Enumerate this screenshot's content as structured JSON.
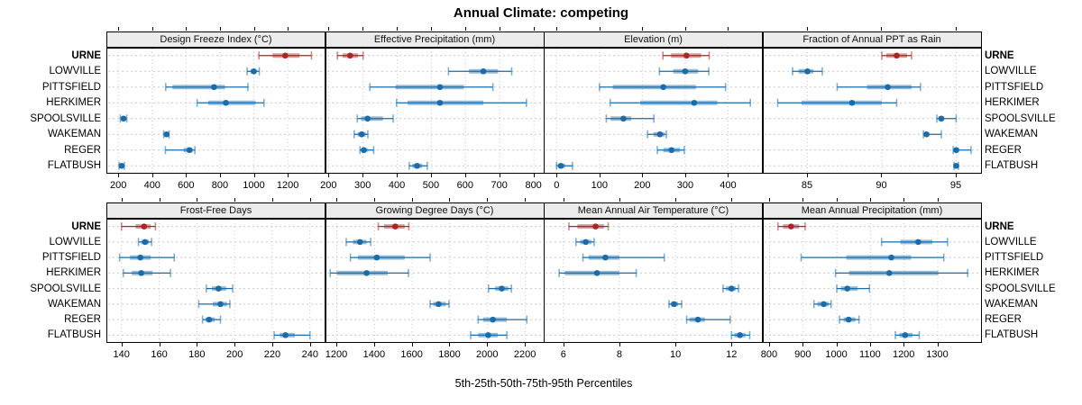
{
  "title": "Annual Climate: competing",
  "xlabel": "5th-25th-50th-75th-95th Percentiles",
  "colors": {
    "highlight": "#b22222",
    "normal": "#1a6ba8",
    "strip_bg": "#ebebeb",
    "grid": "#c9c9c9",
    "border": "#000000",
    "panel_bg": "#ffffff"
  },
  "chart_data": {
    "type": "dotplot-percentiles",
    "title": "Annual Climate: competing",
    "xlabel": "5th-25th-50th-75th-95th Percentiles",
    "percentile_labels": [
      "5th",
      "25th",
      "50th",
      "75th",
      "95th"
    ],
    "categories": [
      "URNE",
      "LOWVILLE",
      "PITTSFIELD",
      "HERKIMER",
      "SPOOLSVILLE",
      "WAKEMAN",
      "REGER",
      "FLATBUSH"
    ],
    "highlight_category": "URNE",
    "legend_position": "none",
    "grid": true,
    "panels": [
      {
        "title": "Design Freeze Index (°C)",
        "row": 0,
        "col": 0,
        "xlim": [
          130,
          1420
        ],
        "ticks": [
          200,
          400,
          600,
          800,
          1000,
          1200
        ],
        "series": [
          [
            1030,
            1110,
            1185,
            1270,
            1340
          ],
          [
            960,
            980,
            1000,
            1016,
            1032
          ],
          [
            480,
            520,
            765,
            830,
            965
          ],
          [
            665,
            730,
            835,
            1010,
            1060
          ],
          [
            212,
            222,
            231,
            240,
            250
          ],
          [
            468,
            477,
            485,
            493,
            500
          ],
          [
            478,
            585,
            620,
            640,
            652
          ],
          [
            205,
            212,
            220,
            228,
            236
          ]
        ]
      },
      {
        "title": "Effective Precipitation (mm)",
        "row": 0,
        "col": 1,
        "xlim": [
          190,
          830
        ],
        "ticks": [
          200,
          300,
          400,
          500,
          600,
          700,
          800
        ],
        "series": [
          [
            225,
            240,
            262,
            285,
            300
          ],
          [
            550,
            610,
            652,
            695,
            735
          ],
          [
            320,
            395,
            525,
            595,
            680
          ],
          [
            398,
            430,
            525,
            652,
            778
          ],
          [
            283,
            294,
            313,
            358,
            388
          ],
          [
            274,
            284,
            296,
            308,
            314
          ],
          [
            291,
            296,
            302,
            313,
            331
          ],
          [
            435,
            444,
            458,
            473,
            488
          ]
        ]
      },
      {
        "title": "Elevation (m)",
        "row": 0,
        "col": 2,
        "xlim": [
          -30,
          480
        ],
        "ticks": [
          0,
          100,
          200,
          300,
          400
        ],
        "series": [
          [
            248,
            267,
            303,
            337,
            356
          ],
          [
            240,
            272,
            300,
            330,
            355
          ],
          [
            100,
            131,
            249,
            325,
            394
          ],
          [
            125,
            195,
            321,
            375,
            452
          ],
          [
            116,
            126,
            156,
            174,
            227
          ],
          [
            212,
            226,
            241,
            252,
            256
          ],
          [
            235,
            249,
            268,
            288,
            298
          ],
          [
            0,
            3,
            10,
            20,
            37
          ]
        ]
      },
      {
        "title": "Fraction of Annual PPT as Rain",
        "row": 0,
        "col": 3,
        "xlim": [
          82,
          96.7
        ],
        "ticks": [
          85,
          90,
          95
        ],
        "series": [
          [
            90.0,
            90.3,
            91.0,
            91.7,
            92.0
          ],
          [
            84.0,
            84.4,
            85.0,
            85.4,
            86.0
          ],
          [
            87.0,
            89.0,
            90.4,
            92.0,
            92.6
          ],
          [
            83.0,
            84.6,
            88.0,
            90.0,
            91.0
          ],
          [
            93.7,
            93.8,
            94.0,
            94.2,
            95.0
          ],
          [
            92.8,
            92.9,
            93.0,
            93.2,
            94.0
          ],
          [
            94.8,
            94.9,
            95.0,
            95.2,
            96.0
          ],
          [
            94.85,
            94.9,
            95.0,
            95.1,
            95.15
          ]
        ]
      },
      {
        "title": "Frost-Free Days",
        "row": 1,
        "col": 0,
        "xlim": [
          132,
          248
        ],
        "ticks": [
          140,
          160,
          180,
          200,
          220,
          240
        ],
        "series": [
          [
            140,
            147.5,
            152,
            155.5,
            158
          ],
          [
            149,
            150.5,
            152.5,
            154.5,
            156
          ],
          [
            139,
            144.5,
            150,
            155.5,
            168
          ],
          [
            141,
            145.5,
            150.5,
            156.5,
            166
          ],
          [
            185,
            188,
            191.5,
            195.5,
            199
          ],
          [
            181,
            188.5,
            192.5,
            196,
            197.5
          ],
          [
            183,
            184.5,
            186.5,
            189.5,
            192.5
          ],
          [
            221,
            224,
            227,
            232,
            240
          ]
        ]
      },
      {
        "title": "Growing Degree Days (°C)",
        "row": 1,
        "col": 1,
        "xlim": [
          1140,
          2300
        ],
        "ticks": [
          1200,
          1400,
          1600,
          1800,
          2000,
          2200
        ],
        "series": [
          [
            1420,
            1450,
            1510,
            1560,
            1582
          ],
          [
            1250,
            1286,
            1323,
            1358,
            1380
          ],
          [
            1272,
            1312,
            1412,
            1560,
            1695
          ],
          [
            1165,
            1200,
            1358,
            1470,
            1580
          ],
          [
            2005,
            2040,
            2075,
            2110,
            2126
          ],
          [
            1695,
            1712,
            1740,
            1779,
            1795
          ],
          [
            1950,
            1976,
            2028,
            2102,
            2208
          ],
          [
            1910,
            1950,
            2003,
            2054,
            2102
          ]
        ]
      },
      {
        "title": "Mean Annual Air Temperature (°C)",
        "row": 1,
        "col": 2,
        "xlim": [
          5.3,
          13.1
        ],
        "ticks": [
          6,
          8,
          10,
          12
        ],
        "series": [
          [
            6.2,
            6.5,
            7.15,
            7.45,
            7.6
          ],
          [
            6.45,
            6.6,
            6.8,
            7.0,
            7.1
          ],
          [
            6.7,
            6.9,
            7.5,
            8.0,
            9.6
          ],
          [
            5.85,
            6.05,
            7.2,
            8.0,
            8.6
          ],
          [
            11.7,
            11.8,
            12.0,
            12.15,
            12.25
          ],
          [
            9.77,
            9.83,
            9.95,
            10.1,
            10.22
          ],
          [
            10.4,
            10.5,
            10.8,
            11.05,
            11.95
          ],
          [
            12.0,
            12.1,
            12.3,
            12.5,
            12.65
          ]
        ]
      },
      {
        "title": "Mean Annual Precipitation (mm)",
        "row": 1,
        "col": 3,
        "xlim": [
          780,
          1430
        ],
        "ticks": [
          800,
          900,
          1000,
          1100,
          1200,
          1300
        ],
        "series": [
          [
            825,
            840,
            864,
            888,
            906
          ],
          [
            1133,
            1189,
            1242,
            1284,
            1329
          ],
          [
            894,
            1028,
            1162,
            1221,
            1318
          ],
          [
            996,
            1036,
            1156,
            1302,
            1389
          ],
          [
            1000,
            1012,
            1031,
            1062,
            1097
          ],
          [
            932,
            942,
            961,
            976,
            983
          ],
          [
            1008,
            1020,
            1035,
            1055,
            1066
          ],
          [
            1174,
            1186,
            1203,
            1225,
            1245
          ]
        ]
      }
    ]
  }
}
